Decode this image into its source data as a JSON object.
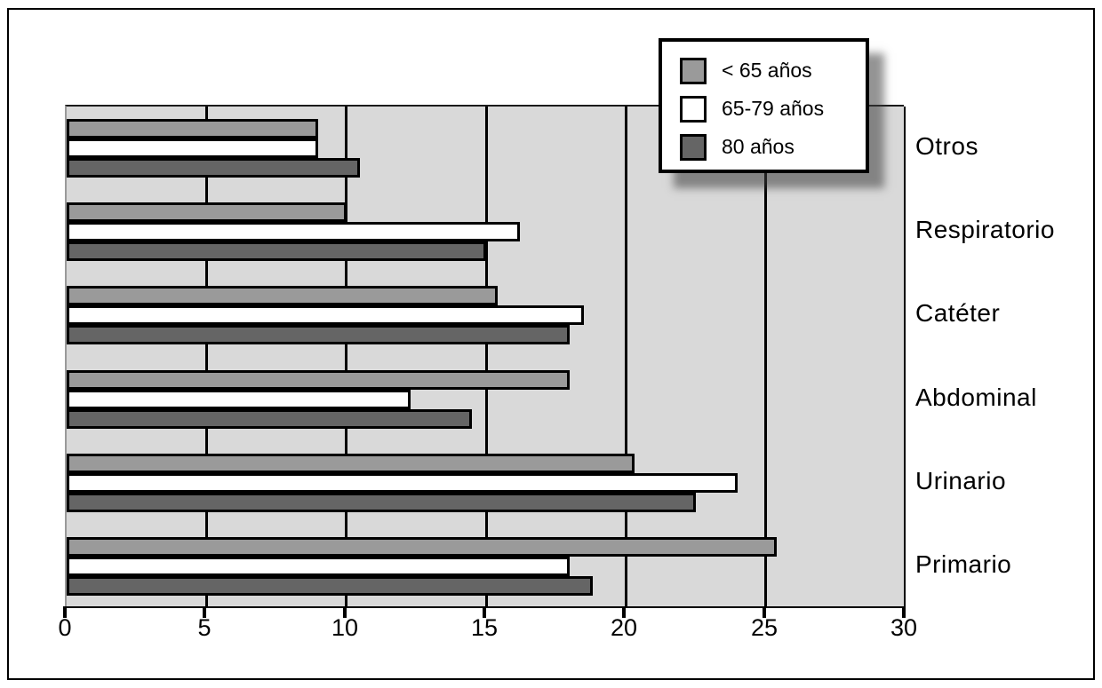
{
  "figure": {
    "background": "#ffffff",
    "border_color": "#000000"
  },
  "chart_data": {
    "type": "bar",
    "orientation": "horizontal",
    "title": "",
    "xlabel": "",
    "ylabel": "",
    "xlim": [
      0,
      30
    ],
    "x_ticks": [
      0,
      5,
      10,
      15,
      20,
      25,
      30
    ],
    "grid": true,
    "plot_background": "#d9d9d9",
    "gridline_color": "#000000",
    "bar_border_color": "#000000",
    "legend_position": "top-right",
    "categories_top_to_bottom": [
      "Otros",
      "Respiratorio",
      "Catéter",
      "Abdominal",
      "Urinario",
      "Primario"
    ],
    "series": [
      {
        "name": "< 65 años",
        "color": "#9a9a9a",
        "values": [
          9.0,
          10.0,
          15.4,
          18.0,
          20.3,
          25.4
        ]
      },
      {
        "name": "65-79 años",
        "color": "#ffffff",
        "values": [
          9.0,
          16.2,
          18.5,
          12.3,
          24.0,
          18.0
        ]
      },
      {
        "name": "80 años",
        "color": "#656565",
        "values": [
          10.5,
          15.0,
          18.0,
          14.5,
          22.5,
          18.8
        ]
      }
    ]
  },
  "legend": {
    "entries": [
      {
        "label": "< 65 años",
        "swatch_color": "#9a9a9a"
      },
      {
        "label": "65-79 años",
        "swatch_color": "#ffffff"
      },
      {
        "label": "80 años",
        "swatch_color": "#656565"
      }
    ]
  }
}
